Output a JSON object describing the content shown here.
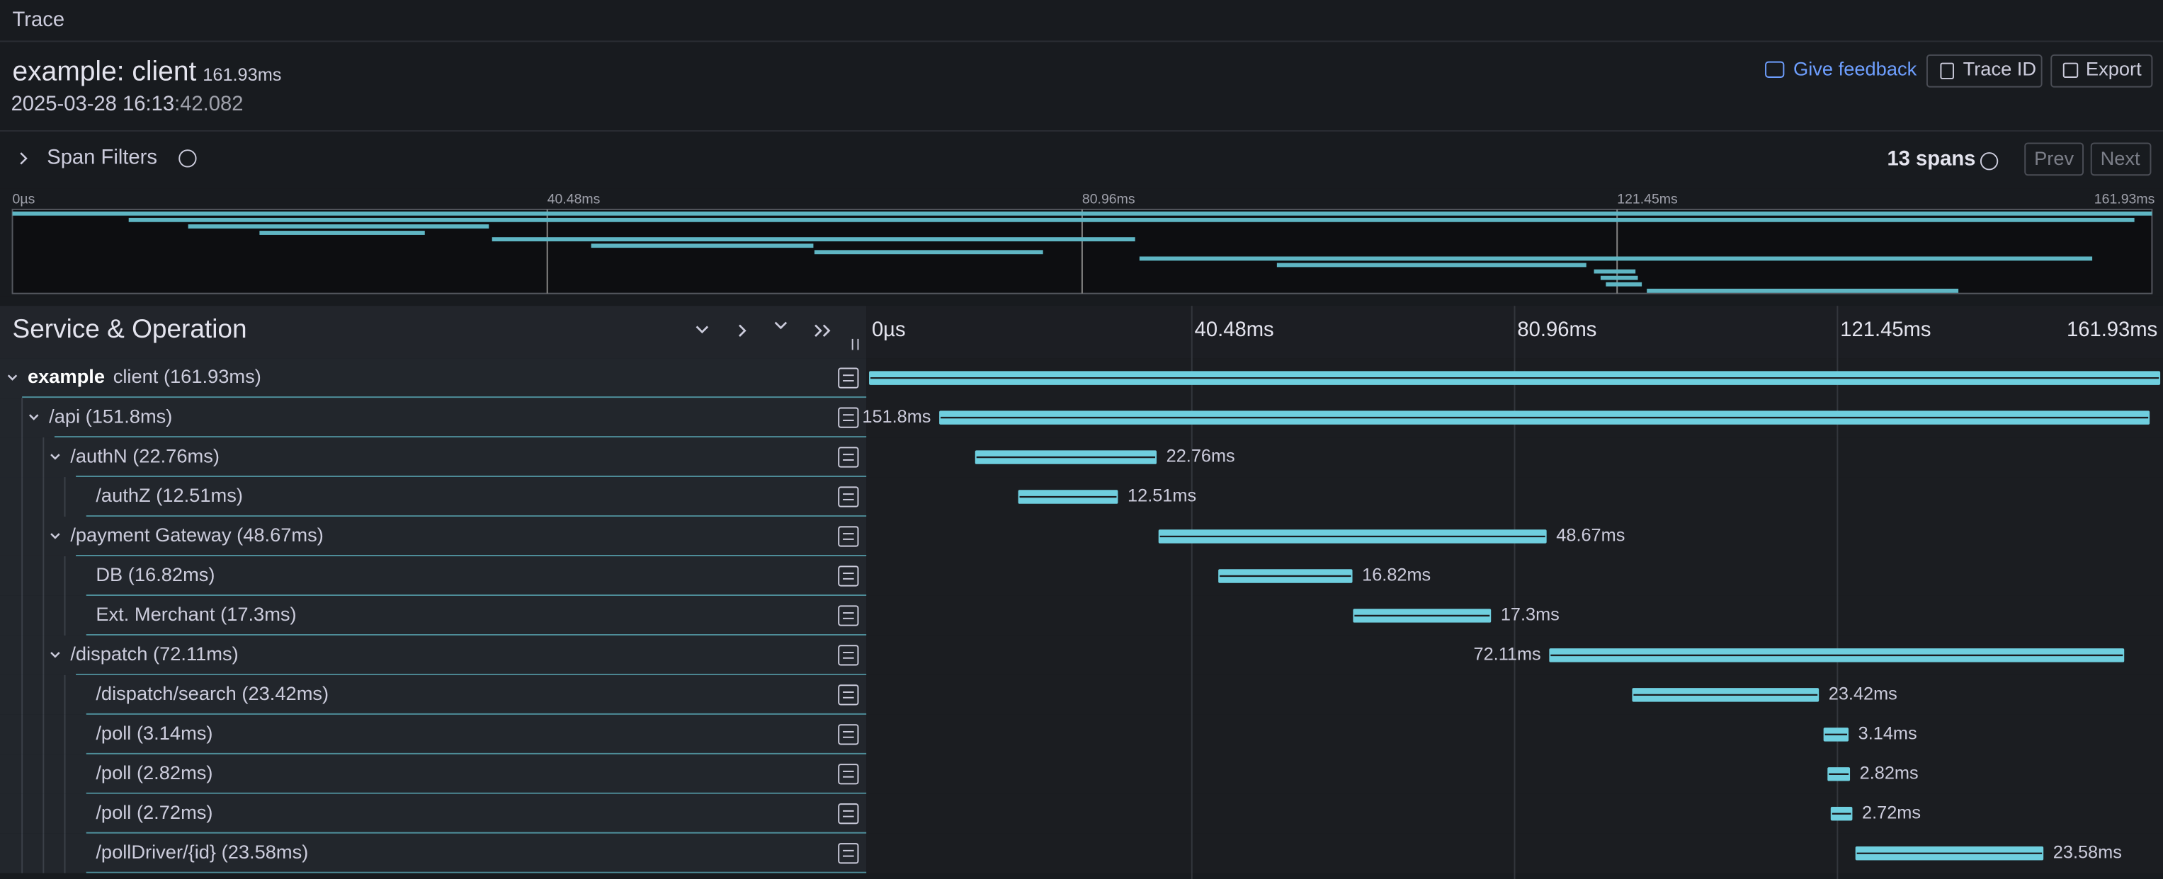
{
  "header": {
    "section": "Trace",
    "service": "example: client",
    "duration": "161.93ms",
    "date": "2025-03-28 16:13",
    "time_rest": ":42.082",
    "buttons": [
      "Give feedback",
      "Trace ID",
      "Export"
    ]
  },
  "filters": {
    "label": "Span Filters",
    "count": "13 spans",
    "prev": "Prev",
    "next": "Next"
  },
  "chart_data": {
    "type": "gantt",
    "column_title": "Service & Operation",
    "color": "#6fcfdf",
    "xlim": [
      0,
      161.93
    ],
    "xticks": [
      {
        "value": 0,
        "label": "0µs"
      },
      {
        "value": 40.48,
        "label": "40.48ms"
      },
      {
        "value": 80.96,
        "label": "80.96ms"
      },
      {
        "value": 121.45,
        "label": "121.45ms"
      },
      {
        "value": 161.93,
        "label": "161.93ms"
      }
    ],
    "spans": [
      {
        "service": "example",
        "label": "client (161.93ms)",
        "start": 0,
        "duration": 161.93,
        "children": [
          {
            "label": "/api (151.8ms)",
            "duration_label": "151.8ms",
            "start": 8.8,
            "duration": 151.8,
            "children": [
              {
                "label": "/authN (22.76ms)",
                "duration_label": "22.76ms",
                "start": 13.3,
                "duration": 22.76,
                "children": [
                  {
                    "label": "/authZ (12.51ms)",
                    "duration_label": "12.51ms",
                    "start": 18.7,
                    "duration": 12.51
                  }
                ]
              },
              {
                "label": "/payment Gateway (48.67ms)",
                "duration_label": "48.67ms",
                "start": 36.3,
                "duration": 48.67,
                "children": [
                  {
                    "label": "DB (16.82ms)",
                    "duration_label": "16.82ms",
                    "start": 43.8,
                    "duration": 16.82
                  },
                  {
                    "label": "Ext. Merchant (17.3ms)",
                    "duration_label": "17.3ms",
                    "start": 60.7,
                    "duration": 17.3
                  }
                ]
              },
              {
                "label": "/dispatch (72.11ms)",
                "duration_label": "72.11ms",
                "start": 85.3,
                "duration": 72.11,
                "children": [
                  {
                    "label": "/dispatch/search (23.42ms)",
                    "duration_label": "23.42ms",
                    "start": 95.7,
                    "duration": 23.42
                  },
                  {
                    "label": "/poll (3.14ms)",
                    "duration_label": "3.14ms",
                    "start": 119.7,
                    "duration": 3.14
                  },
                  {
                    "label": "/poll (2.82ms)",
                    "duration_label": "2.82ms",
                    "start": 120.2,
                    "duration": 2.82
                  },
                  {
                    "label": "/poll (2.72ms)",
                    "duration_label": "2.72ms",
                    "start": 120.6,
                    "duration": 2.72
                  },
                  {
                    "label": "/pollDriver/{id} (23.58ms)",
                    "duration_label": "23.58ms",
                    "start": 123.7,
                    "duration": 23.58
                  }
                ]
              }
            ]
          }
        ]
      }
    ]
  }
}
